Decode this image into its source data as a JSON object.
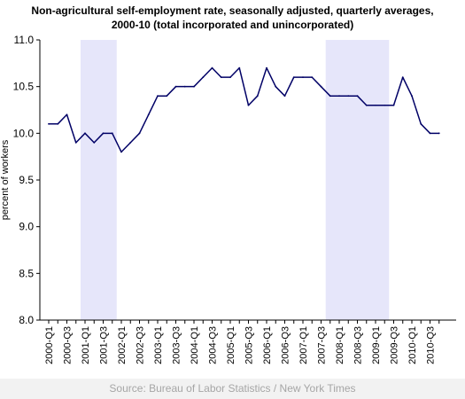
{
  "title_lines": [
    "Non-agricultural self-employment rate, seasonally adjusted, quarterly averages,",
    "2000-10 (total incorporated and unincorporated)"
  ],
  "source": "Source: Bureau of Labor Statistics / New York Times",
  "colors": {
    "line": "#000066",
    "recession_band": "#e6e6fa",
    "axis": "#000000",
    "footer_bg": "#f2f2f2",
    "footer_text": "#a6a6a6"
  },
  "chart_data": {
    "type": "line",
    "title": "Non-agricultural self-employment rate, seasonally adjusted, quarterly averages, 2000-10 (total incorporated and unincorporated)",
    "xlabel": "",
    "ylabel": "percent of workers",
    "ylim": [
      8.0,
      11.0
    ],
    "yticks": [
      "8.0",
      "8.5",
      "9.0",
      "9.5",
      "10.0",
      "10.5",
      "11.0"
    ],
    "grid": false,
    "x": [
      "2000-Q1",
      "2000-Q2",
      "2000-Q3",
      "2000-Q4",
      "2001-Q1",
      "2001-Q2",
      "2001-Q3",
      "2001-Q4",
      "2002-Q1",
      "2002-Q2",
      "2002-Q3",
      "2002-Q4",
      "2003-Q1",
      "2003-Q2",
      "2003-Q3",
      "2003-Q4",
      "2004-Q1",
      "2004-Q2",
      "2004-Q3",
      "2004-Q4",
      "2005-Q1",
      "2005-Q2",
      "2005-Q3",
      "2005-Q4",
      "2006-Q1",
      "2006-Q2",
      "2006-Q3",
      "2006-Q4",
      "2007-Q1",
      "2007-Q2",
      "2007-Q3",
      "2007-Q4",
      "2008-Q1",
      "2008-Q2",
      "2008-Q3",
      "2008-Q4",
      "2009-Q1",
      "2009-Q2",
      "2009-Q3",
      "2009-Q4",
      "2010-Q1",
      "2010-Q2",
      "2010-Q3",
      "2010-Q4"
    ],
    "x_tick_labels": [
      "2000-Q1",
      "2000-Q3",
      "2001-Q1",
      "2001-Q3",
      "2002-Q1",
      "2002-Q3",
      "2003-Q1",
      "2003-Q3",
      "2004-Q1",
      "2004-Q3",
      "2005-Q1",
      "2005-Q3",
      "2006-Q1",
      "2006-Q3",
      "2007-Q1",
      "2007-Q3",
      "2008-Q1",
      "2008-Q3",
      "2009-Q1",
      "2009-Q3",
      "2010-Q1",
      "2010-Q3"
    ],
    "series": [
      {
        "values": [
          10.1,
          10.1,
          10.2,
          9.9,
          10.0,
          9.9,
          10.0,
          10.0,
          9.8,
          9.9,
          10.0,
          10.2,
          10.4,
          10.4,
          10.5,
          10.5,
          10.5,
          10.6,
          10.7,
          10.6,
          10.6,
          10.7,
          10.3,
          10.4,
          10.7,
          10.5,
          10.4,
          10.6,
          10.6,
          10.6,
          10.5,
          10.4,
          10.4,
          10.4,
          10.4,
          10.3,
          10.3,
          10.3,
          10.3,
          10.6,
          10.4,
          10.1,
          10.0,
          10.0
        ]
      }
    ],
    "shaded_periods": [
      {
        "start": "2001-Q1",
        "end": "2001-Q4"
      },
      {
        "start": "2007-Q4",
        "end": "2009-Q2"
      }
    ]
  }
}
